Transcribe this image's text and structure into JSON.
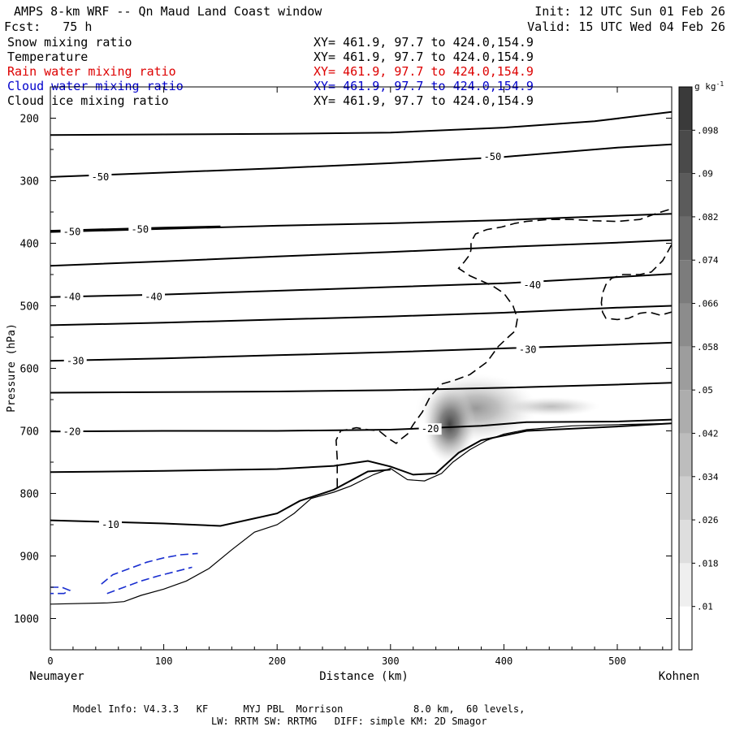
{
  "header": {
    "title": "AMPS 8-km WRF -- Qn Maud Land Coast window",
    "init": "Init: 12 UTC Sun 01 Feb 26",
    "fcst": "Fcst:   75 h",
    "valid": "Valid: 15 UTC Wed 04 Feb 26"
  },
  "fields": [
    {
      "name": "Snow mixing ratio",
      "xy": "XY= 461.9, 97.7 to 424.0,154.9",
      "color": "#000000"
    },
    {
      "name": "Temperature",
      "xy": "XY= 461.9, 97.7 to 424.0,154.9",
      "color": "#000000"
    },
    {
      "name": "Rain water mixing ratio",
      "xy": "XY= 461.9, 97.7 to 424.0,154.9",
      "color": "#dd0000"
    },
    {
      "name": "Cloud water mixing ratio",
      "xy": "XY= 461.9, 97.7 to 424.0,154.9",
      "color": "#0000cc"
    },
    {
      "name": "Cloud ice mixing ratio",
      "xy": "XY= 461.9, 97.7 to 424.0,154.9",
      "color": "#000000"
    }
  ],
  "footer": {
    "line1": "Model Info: V4.3.3   KF      MYJ PBL  Morrison            8.0 km,  60 levels,",
    "line2": "LW: RRTM SW: RRTMG   DIFF: simple KM: 2D Smagor"
  },
  "chart_data": {
    "type": "cross-section",
    "xlabel": "Distance (km)",
    "ylabel": "Pressure (hPa)",
    "x_range": [
      0,
      548
    ],
    "x_ticks": [
      0,
      100,
      200,
      300,
      400,
      500
    ],
    "y_range": [
      150,
      1050
    ],
    "y_ticks": [
      200,
      300,
      400,
      500,
      600,
      700,
      800,
      900,
      1000
    ],
    "x_end_labels": {
      "left": "Neumayer",
      "right": "Kohnen"
    },
    "colorbar": {
      "unit": "g kg",
      "unit_exp": "-1",
      "ticks": [
        ".01",
        ".018",
        ".026",
        ".034",
        ".042",
        ".05",
        ".058",
        ".066",
        ".074",
        ".082",
        ".09",
        ".098"
      ]
    },
    "temperature_contours": [
      {
        "points": [
          [
            0,
            227
          ],
          [
            100,
            226
          ],
          [
            200,
            225
          ],
          [
            300,
            223
          ],
          [
            400,
            215
          ],
          [
            480,
            205
          ],
          [
            548,
            190
          ]
        ]
      },
      {
        "points": [
          [
            0,
            294
          ],
          [
            100,
            287
          ],
          [
            200,
            280
          ],
          [
            300,
            272
          ],
          [
            400,
            262
          ],
          [
            500,
            247
          ],
          [
            548,
            242
          ]
        ],
        "label": "-50",
        "label_at": [
          34,
          294
        ]
      },
      {
        "points": [
          [
            0,
            382
          ],
          [
            100,
            377
          ],
          [
            200,
            372
          ],
          [
            300,
            368
          ],
          [
            400,
            363
          ],
          [
            500,
            356
          ],
          [
            548,
            353
          ]
        ]
      },
      {
        "points": [
          [
            0,
            380
          ],
          [
            100,
            375
          ],
          [
            150,
            373
          ]
        ],
        "label": "-50",
        "label_at": [
          18,
          382
        ]
      },
      {
        "points": [
          [
            0,
            436
          ],
          [
            100,
            429
          ],
          [
            200,
            421
          ],
          [
            300,
            414
          ],
          [
            400,
            406
          ],
          [
            500,
            399
          ],
          [
            548,
            395
          ]
        ]
      },
      {
        "points": [
          [
            0,
            486
          ],
          [
            100,
            482
          ],
          [
            200,
            476
          ],
          [
            300,
            470
          ],
          [
            400,
            464
          ],
          [
            500,
            454
          ],
          [
            548,
            449
          ]
        ],
        "label": "-40",
        "label_at": [
          18,
          486
        ]
      },
      {
        "points": [
          [
            0,
            531
          ],
          [
            100,
            527
          ],
          [
            200,
            522
          ],
          [
            300,
            517
          ],
          [
            400,
            511
          ],
          [
            500,
            503
          ],
          [
            548,
            500
          ]
        ]
      },
      {
        "points": [
          [
            0,
            588
          ],
          [
            100,
            584
          ],
          [
            200,
            579
          ],
          [
            300,
            574
          ],
          [
            400,
            568
          ],
          [
            500,
            562
          ],
          [
            548,
            559
          ]
        ],
        "label": "-30",
        "label_at": [
          22,
          588
        ]
      },
      {
        "points": [
          [
            0,
            639
          ],
          [
            100,
            638
          ],
          [
            200,
            637
          ],
          [
            300,
            635
          ],
          [
            400,
            631
          ],
          [
            500,
            626
          ],
          [
            548,
            623
          ]
        ]
      },
      {
        "points": [
          [
            0,
            701
          ],
          [
            100,
            700
          ],
          [
            200,
            700
          ],
          [
            300,
            698
          ],
          [
            380,
            692
          ],
          [
            420,
            686
          ],
          [
            500,
            685
          ],
          [
            548,
            682
          ]
        ],
        "label": "-20",
        "label_at": [
          20,
          701
        ]
      },
      {
        "points": [
          [
            0,
            766
          ],
          [
            100,
            764
          ],
          [
            200,
            761
          ],
          [
            250,
            756
          ],
          [
            280,
            748
          ],
          [
            300,
            757
          ],
          [
            320,
            770
          ],
          [
            340,
            768
          ],
          [
            360,
            735
          ],
          [
            380,
            715
          ],
          [
            420,
            700
          ],
          [
            500,
            693
          ],
          [
            548,
            688
          ]
        ]
      },
      {
        "points": [
          [
            0,
            843
          ],
          [
            100,
            848
          ],
          [
            150,
            852
          ],
          [
            200,
            832
          ],
          [
            220,
            812
          ],
          [
            250,
            794
          ],
          [
            280,
            765
          ],
          [
            300,
            762
          ]
        ],
        "label": "-10",
        "label_at": [
          53,
          850
        ]
      }
    ],
    "contour_labels": [
      {
        "text": "-50",
        "at": [
          44,
          294
        ]
      },
      {
        "text": "-50",
        "at": [
          19,
          382
        ]
      },
      {
        "text": "-50",
        "at": [
          79,
          378
        ]
      },
      {
        "text": "-50",
        "at": [
          390,
          262
        ]
      },
      {
        "text": "-40",
        "at": [
          19,
          486
        ]
      },
      {
        "text": "-40",
        "at": [
          91,
          486
        ]
      },
      {
        "text": "-40",
        "at": [
          425,
          467
        ]
      },
      {
        "text": "-30",
        "at": [
          22,
          588
        ]
      },
      {
        "text": "-30",
        "at": [
          421,
          570
        ]
      },
      {
        "text": "-20",
        "at": [
          19,
          701
        ]
      },
      {
        "text": "-20",
        "at": [
          335,
          697
        ]
      },
      {
        "text": "-10",
        "at": [
          53,
          850
        ]
      }
    ],
    "terrain": [
      [
        0,
        977
      ],
      [
        50,
        975
      ],
      [
        65,
        973
      ],
      [
        80,
        963
      ],
      [
        100,
        953
      ],
      [
        120,
        940
      ],
      [
        140,
        920
      ],
      [
        160,
        890
      ],
      [
        180,
        862
      ],
      [
        200,
        850
      ],
      [
        215,
        832
      ],
      [
        230,
        808
      ],
      [
        250,
        798
      ],
      [
        265,
        788
      ],
      [
        285,
        770
      ],
      [
        300,
        760
      ],
      [
        315,
        778
      ],
      [
        330,
        780
      ],
      [
        345,
        768
      ],
      [
        355,
        750
      ],
      [
        370,
        730
      ],
      [
        385,
        715
      ],
      [
        400,
        705
      ],
      [
        420,
        698
      ],
      [
        460,
        692
      ],
      [
        500,
        690
      ],
      [
        548,
        688
      ]
    ],
    "cloud_ice_contour": [
      [
        253,
        790
      ],
      [
        253,
        745
      ],
      [
        252,
        715
      ],
      [
        256,
        700
      ],
      [
        270,
        695
      ],
      [
        280,
        698
      ],
      [
        290,
        700
      ],
      [
        298,
        712
      ],
      [
        305,
        720
      ],
      [
        310,
        712
      ],
      [
        315,
        705
      ],
      [
        320,
        690
      ],
      [
        328,
        670
      ],
      [
        335,
        645
      ],
      [
        345,
        625
      ],
      [
        355,
        620
      ],
      [
        370,
        610
      ],
      [
        385,
        590
      ],
      [
        395,
        565
      ],
      [
        405,
        548
      ],
      [
        410,
        540
      ],
      [
        412,
        520
      ],
      [
        408,
        500
      ],
      [
        400,
        480
      ],
      [
        390,
        468
      ],
      [
        370,
        452
      ],
      [
        360,
        440
      ],
      [
        365,
        430
      ],
      [
        370,
        418
      ],
      [
        371,
        410
      ],
      [
        371,
        398
      ],
      [
        375,
        385
      ],
      [
        385,
        378
      ],
      [
        398,
        374
      ],
      [
        410,
        368
      ],
      [
        420,
        365
      ],
      [
        440,
        362
      ],
      [
        460,
        362
      ],
      [
        480,
        364
      ],
      [
        500,
        365
      ],
      [
        520,
        362
      ],
      [
        535,
        352
      ],
      [
        548,
        345
      ]
    ],
    "cloud_ice_contour2": [
      [
        548,
        402
      ],
      [
        545,
        412
      ],
      [
        540,
        428
      ],
      [
        530,
        446
      ],
      [
        520,
        450
      ],
      [
        505,
        450
      ],
      [
        495,
        456
      ],
      [
        490,
        466
      ],
      [
        487,
        480
      ],
      [
        486,
        495
      ],
      [
        487,
        510
      ],
      [
        490,
        520
      ],
      [
        500,
        522
      ],
      [
        510,
        520
      ],
      [
        520,
        512
      ],
      [
        528,
        510
      ],
      [
        538,
        515
      ],
      [
        548,
        510
      ]
    ],
    "cloud_water_contour": [
      [
        45,
        945
      ],
      [
        55,
        930
      ],
      [
        70,
        920
      ],
      [
        85,
        910
      ],
      [
        100,
        903
      ],
      [
        115,
        898
      ],
      [
        130,
        896
      ]
    ],
    "cloud_water_contour2": [
      [
        50,
        960
      ],
      [
        65,
        950
      ],
      [
        80,
        940
      ],
      [
        95,
        932
      ],
      [
        110,
        925
      ],
      [
        125,
        918
      ]
    ],
    "cloud_water_contour3": [
      [
        0,
        950
      ],
      [
        10,
        950
      ],
      [
        17,
        955
      ],
      [
        12,
        960
      ],
      [
        0,
        960
      ]
    ],
    "snow_max": {
      "x": 370,
      "p": 700,
      "value": 0.082
    }
  }
}
